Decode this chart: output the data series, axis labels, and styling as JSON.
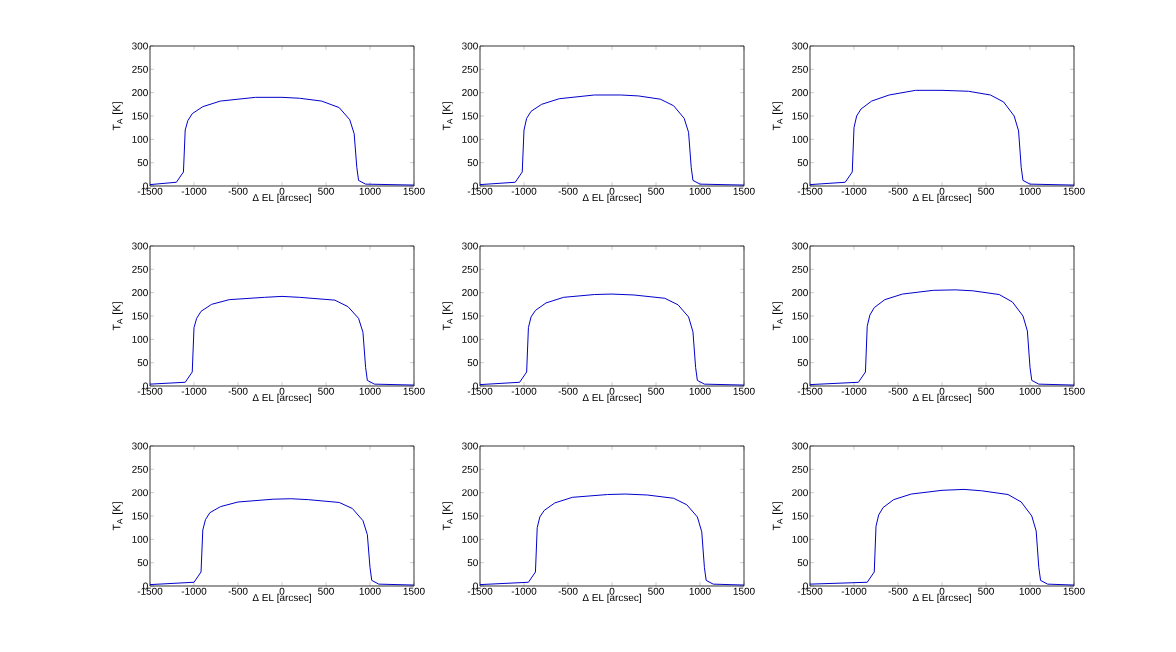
{
  "chart_data": [
    {
      "type": "line",
      "xlabel": "Δ EL [arcsec]",
      "ylabel": "T$_{A}$ [K]",
      "xlim": [
        -1500,
        1500
      ],
      "ylim": [
        0,
        300
      ],
      "xticks": [
        -1500,
        -1000,
        -500,
        0,
        500,
        1000,
        1500
      ],
      "yticks": [
        0,
        50,
        100,
        150,
        200,
        250,
        300
      ],
      "series": [
        {
          "color": "#0000cc",
          "x": [
            -1500,
            -1200,
            -1120,
            -1100,
            -1070,
            -1020,
            -900,
            -700,
            -300,
            0,
            200,
            450,
            650,
            770,
            820,
            850,
            870,
            950,
            1500
          ],
          "values": [
            3,
            8,
            30,
            120,
            140,
            155,
            170,
            182,
            190,
            190,
            188,
            182,
            168,
            142,
            112,
            40,
            12,
            4,
            2
          ]
        }
      ]
    },
    {
      "type": "line",
      "xlabel": "Δ EL [arcsec]",
      "ylabel": "T$_{A}$ [K]",
      "xlim": [
        -1500,
        1500
      ],
      "ylim": [
        0,
        300
      ],
      "xticks": [
        -1500,
        -1000,
        -500,
        0,
        500,
        1000,
        1500
      ],
      "yticks": [
        0,
        50,
        100,
        150,
        200,
        250,
        300
      ],
      "series": [
        {
          "color": "#0000cc",
          "x": [
            -1500,
            -1100,
            -1020,
            -1000,
            -970,
            -920,
            -800,
            -600,
            -200,
            100,
            300,
            550,
            700,
            820,
            870,
            900,
            920,
            1000,
            1500
          ],
          "values": [
            3,
            8,
            30,
            120,
            145,
            160,
            175,
            187,
            195,
            195,
            193,
            186,
            172,
            145,
            115,
            40,
            12,
            4,
            2
          ]
        }
      ]
    },
    {
      "type": "line",
      "xlabel": "Δ EL [arcsec]",
      "ylabel": "T$_{A}$ [K]",
      "xlim": [
        -1500,
        1500
      ],
      "ylim": [
        0,
        300
      ],
      "xticks": [
        -1500,
        -1000,
        -500,
        0,
        500,
        1000,
        1500
      ],
      "yticks": [
        0,
        50,
        100,
        150,
        200,
        250,
        300
      ],
      "series": [
        {
          "color": "#0000cc",
          "x": [
            -1500,
            -1100,
            -1020,
            -1000,
            -970,
            -920,
            -800,
            -600,
            -300,
            0,
            300,
            550,
            700,
            820,
            870,
            900,
            920,
            1000,
            1500
          ],
          "values": [
            3,
            8,
            30,
            125,
            150,
            165,
            182,
            195,
            205,
            205,
            203,
            195,
            180,
            150,
            118,
            40,
            12,
            4,
            2
          ]
        }
      ]
    },
    {
      "type": "line",
      "xlabel": "Δ EL [arcsec]",
      "ylabel": "T$_{A}$ [K]",
      "xlim": [
        -1500,
        1500
      ],
      "ylim": [
        0,
        300
      ],
      "xticks": [
        -1500,
        -1000,
        -500,
        0,
        500,
        1000,
        1500
      ],
      "yticks": [
        0,
        50,
        100,
        150,
        200,
        250,
        300
      ],
      "series": [
        {
          "color": "#0000cc",
          "x": [
            -1500,
            -1100,
            -1020,
            -1000,
            -970,
            -920,
            -800,
            -600,
            -200,
            0,
            200,
            600,
            750,
            870,
            920,
            950,
            970,
            1050,
            1500
          ],
          "values": [
            4,
            8,
            30,
            125,
            145,
            160,
            175,
            185,
            190,
            192,
            190,
            184,
            170,
            145,
            115,
            40,
            12,
            4,
            2
          ]
        }
      ]
    },
    {
      "type": "line",
      "xlabel": "Δ EL [arcsec]",
      "ylabel": "T$_{A}$ [K]",
      "xlim": [
        -1500,
        1500
      ],
      "ylim": [
        0,
        300
      ],
      "xticks": [
        -1500,
        -1000,
        -500,
        0,
        500,
        1000,
        1500
      ],
      "yticks": [
        0,
        50,
        100,
        150,
        200,
        250,
        300
      ],
      "series": [
        {
          "color": "#0000cc",
          "x": [
            -1500,
            -1050,
            -970,
            -950,
            -920,
            -870,
            -750,
            -550,
            -200,
            0,
            250,
            600,
            750,
            870,
            920,
            950,
            970,
            1050,
            1500
          ],
          "values": [
            3,
            8,
            30,
            125,
            148,
            162,
            178,
            190,
            196,
            197,
            195,
            188,
            174,
            148,
            116,
            40,
            12,
            4,
            2
          ]
        }
      ]
    },
    {
      "type": "line",
      "xlabel": "Δ EL [arcsec]",
      "ylabel": "T$_{A}$ [K]",
      "xlim": [
        -1500,
        1500
      ],
      "ylim": [
        0,
        300
      ],
      "xticks": [
        -1500,
        -1000,
        -500,
        0,
        500,
        1000,
        1500
      ],
      "yticks": [
        0,
        50,
        100,
        150,
        200,
        250,
        300
      ],
      "series": [
        {
          "color": "#0000cc",
          "x": [
            -1500,
            -950,
            -870,
            -850,
            -820,
            -770,
            -650,
            -450,
            -100,
            150,
            350,
            650,
            800,
            920,
            970,
            1000,
            1020,
            1100,
            1500
          ],
          "values": [
            3,
            8,
            30,
            128,
            152,
            168,
            185,
            197,
            205,
            206,
            204,
            196,
            180,
            150,
            118,
            40,
            12,
            4,
            2
          ]
        }
      ]
    },
    {
      "type": "line",
      "xlabel": "Δ EL [arcsec]",
      "ylabel": "T$_{A}$ [K]",
      "xlim": [
        -1500,
        1500
      ],
      "ylim": [
        0,
        300
      ],
      "xticks": [
        -1500,
        -1000,
        -500,
        0,
        500,
        1000,
        1500
      ],
      "yticks": [
        0,
        50,
        100,
        150,
        200,
        250,
        300
      ],
      "series": [
        {
          "color": "#0000cc",
          "x": [
            -1500,
            -1000,
            -920,
            -900,
            -870,
            -820,
            -700,
            -500,
            -100,
            100,
            300,
            650,
            800,
            920,
            970,
            1000,
            1020,
            1100,
            1500
          ],
          "values": [
            3,
            8,
            30,
            120,
            142,
            157,
            170,
            180,
            186,
            187,
            185,
            179,
            166,
            140,
            110,
            40,
            12,
            4,
            2
          ]
        }
      ]
    },
    {
      "type": "line",
      "xlabel": "Δ EL [arcsec]",
      "ylabel": "T$_{A}$ [K]",
      "xlim": [
        -1500,
        1500
      ],
      "ylim": [
        0,
        300
      ],
      "xticks": [
        -1500,
        -1000,
        -500,
        0,
        500,
        1000,
        1500
      ],
      "yticks": [
        0,
        50,
        100,
        150,
        200,
        250,
        300
      ],
      "series": [
        {
          "color": "#0000cc",
          "x": [
            -1500,
            -950,
            -870,
            -850,
            -820,
            -770,
            -650,
            -450,
            -50,
            150,
            400,
            700,
            850,
            970,
            1020,
            1050,
            1070,
            1150,
            1500
          ],
          "values": [
            3,
            8,
            30,
            125,
            148,
            162,
            178,
            190,
            196,
            197,
            195,
            188,
            174,
            148,
            116,
            40,
            12,
            4,
            2
          ]
        }
      ]
    },
    {
      "type": "line",
      "xlabel": "Δ EL [arcsec]",
      "ylabel": "T$_{A}$ [K]",
      "xlim": [
        -1500,
        1500
      ],
      "ylim": [
        0,
        300
      ],
      "xticks": [
        -1500,
        -1000,
        -500,
        0,
        500,
        1000,
        1500
      ],
      "yticks": [
        0,
        50,
        100,
        150,
        200,
        250,
        300
      ],
      "series": [
        {
          "color": "#0000cc",
          "x": [
            -1500,
            -850,
            -770,
            -750,
            -720,
            -670,
            -550,
            -350,
            0,
            250,
            450,
            750,
            900,
            1020,
            1070,
            1100,
            1120,
            1200,
            1500
          ],
          "values": [
            4,
            8,
            30,
            128,
            152,
            168,
            185,
            197,
            205,
            207,
            204,
            196,
            180,
            150,
            118,
            40,
            12,
            4,
            2
          ]
        }
      ]
    }
  ]
}
